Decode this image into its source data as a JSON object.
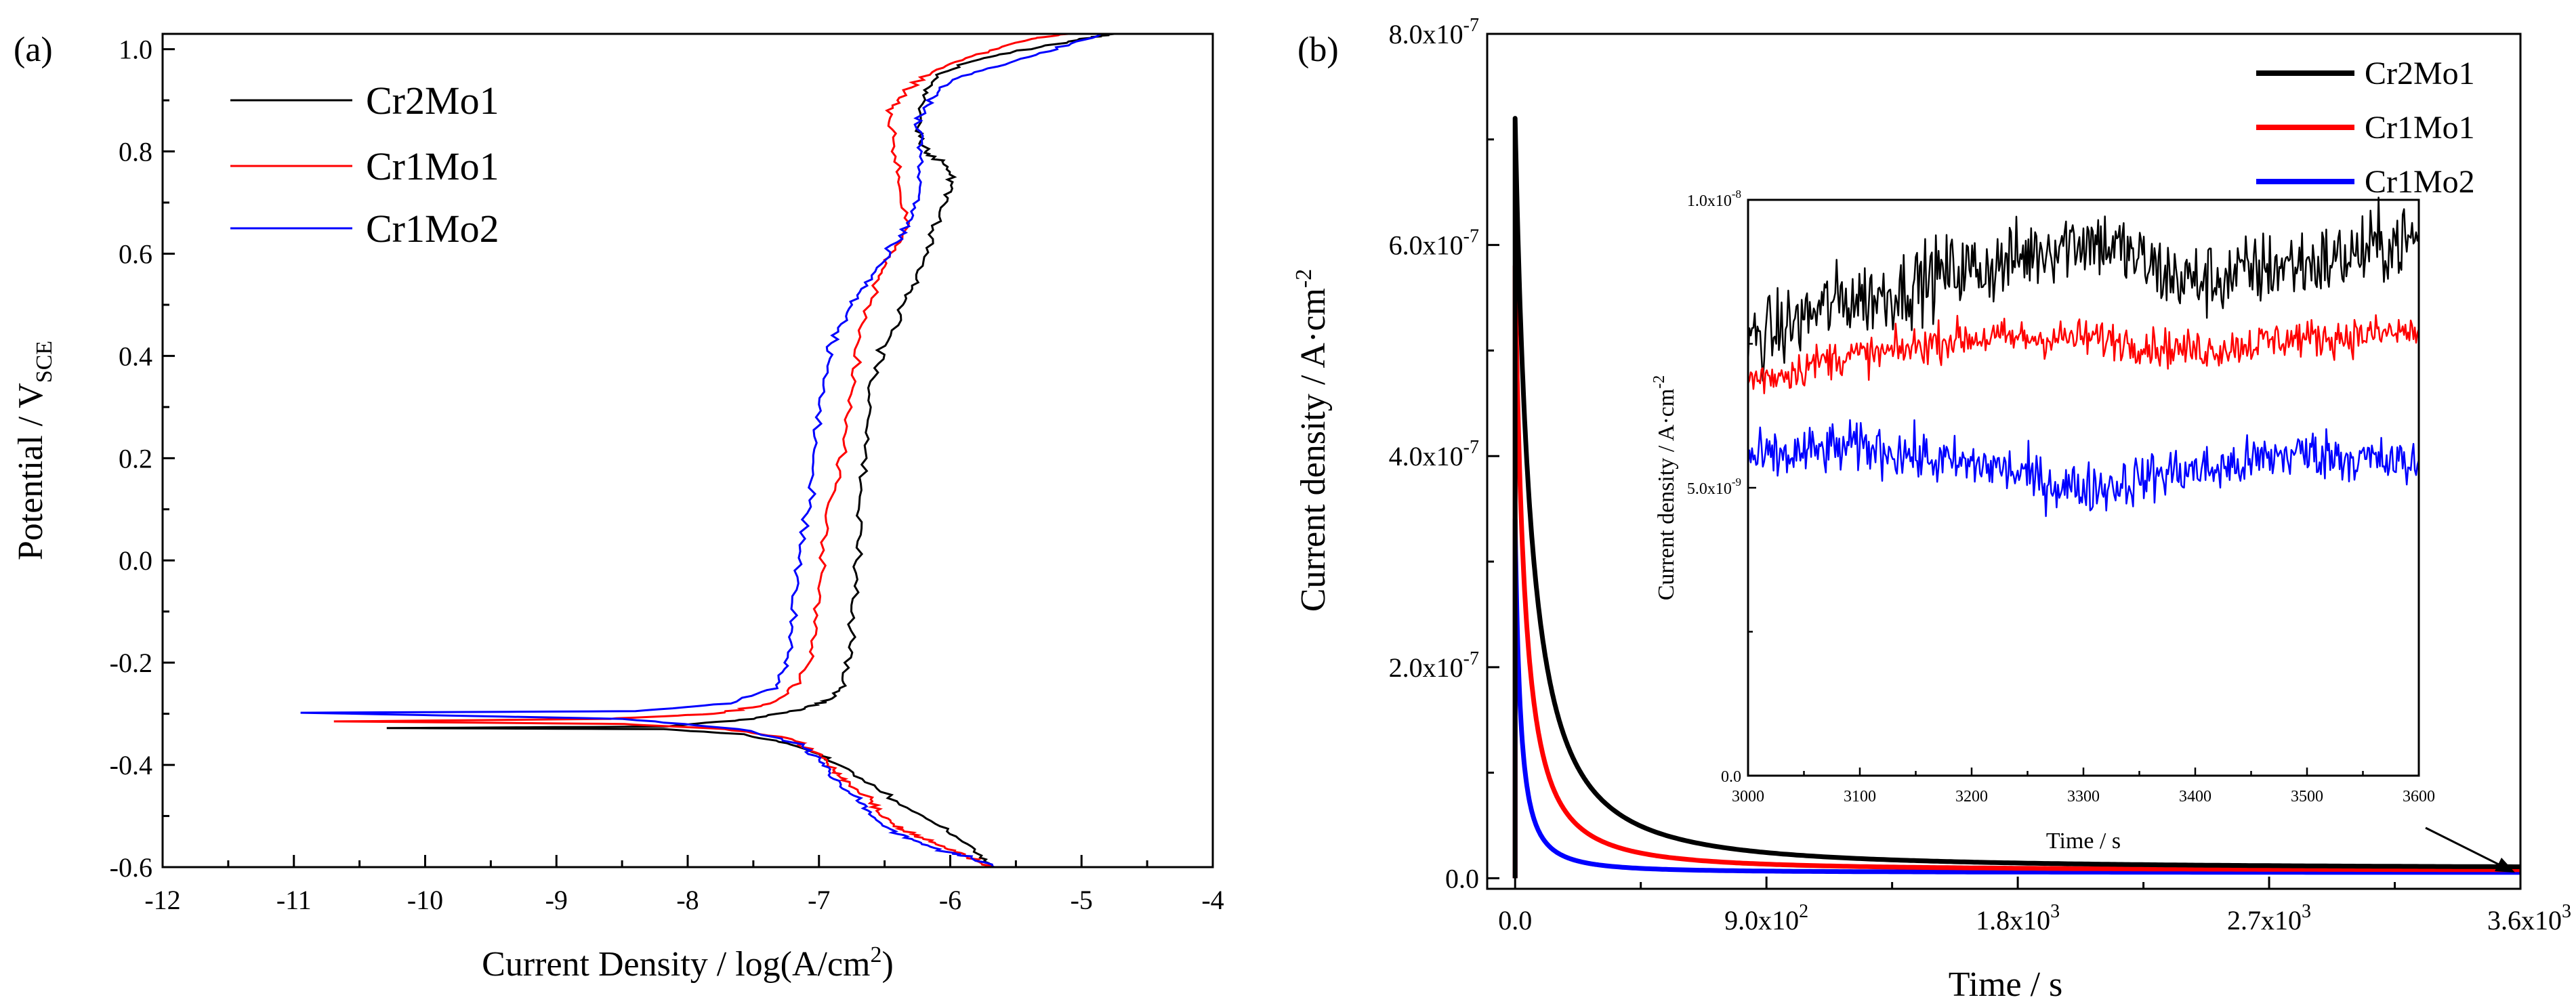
{
  "colors": {
    "Cr2Mo1": "#000000",
    "Cr1Mo1": "#ff0000",
    "Cr1Mo2": "#0000ff"
  },
  "chart_data": [
    {
      "id": "a",
      "type": "line",
      "panel_label": "(a)",
      "xlabel": "Current Density / log(A/cm",
      "xlabel_sup": "2",
      "xlabel_end": ")",
      "ylabel": "Potential / V",
      "ylabel_sub": "SCE",
      "xlim": [
        -12,
        -4
      ],
      "ylim": [
        -0.6,
        1.03
      ],
      "x_ticks": [
        "-12",
        "-11",
        "-10",
        "-9",
        "-8",
        "-7",
        "-6",
        "-5",
        "-4"
      ],
      "x_tick_values": [
        -12,
        -11,
        -10,
        -9,
        -8,
        -7,
        -6,
        -5,
        -4
      ],
      "y_ticks": [
        "-0.6",
        "-0.4",
        "-0.2",
        "0.0",
        "0.2",
        "0.4",
        "0.6",
        "0.8",
        "1.0"
      ],
      "y_tick_values": [
        -0.6,
        -0.4,
        -0.2,
        0.0,
        0.2,
        0.4,
        0.6,
        0.8,
        1.0
      ],
      "legend_position": "top-left",
      "series": [
        {
          "name": "Cr2Mo1",
          "points": [
            [
              -5.7,
              -0.6
            ],
            [
              -5.8,
              -0.57
            ],
            [
              -6.0,
              -0.53
            ],
            [
              -6.3,
              -0.49
            ],
            [
              -6.6,
              -0.44
            ],
            [
              -6.9,
              -0.39
            ],
            [
              -7.2,
              -0.36
            ],
            [
              -7.6,
              -0.34
            ],
            [
              -8.2,
              -0.33
            ],
            [
              -10.3,
              -0.328
            ],
            [
              -8.2,
              -0.325
            ],
            [
              -7.5,
              -0.31
            ],
            [
              -7.1,
              -0.29
            ],
            [
              -6.9,
              -0.27
            ],
            [
              -6.8,
              -0.23
            ],
            [
              -6.75,
              -0.15
            ],
            [
              -6.72,
              -0.05
            ],
            [
              -6.7,
              0.05
            ],
            [
              -6.68,
              0.15
            ],
            [
              -6.65,
              0.25
            ],
            [
              -6.6,
              0.35
            ],
            [
              -6.5,
              0.42
            ],
            [
              -6.35,
              0.5
            ],
            [
              -6.25,
              0.55
            ],
            [
              -6.15,
              0.62
            ],
            [
              -6.05,
              0.69
            ],
            [
              -5.98,
              0.74
            ],
            [
              -6.05,
              0.78
            ],
            [
              -6.2,
              0.8
            ],
            [
              -6.25,
              0.84
            ],
            [
              -6.2,
              0.91
            ],
            [
              -6.1,
              0.95
            ],
            [
              -5.8,
              0.98
            ],
            [
              -5.4,
              1.0
            ],
            [
              -5.0,
              1.02
            ],
            [
              -4.75,
              1.03
            ]
          ]
        },
        {
          "name": "Cr1Mo1",
          "points": [
            [
              -5.7,
              -0.6
            ],
            [
              -5.85,
              -0.58
            ],
            [
              -6.05,
              -0.56
            ],
            [
              -6.25,
              -0.54
            ],
            [
              -6.4,
              -0.52
            ],
            [
              -6.55,
              -0.49
            ],
            [
              -6.65,
              -0.46
            ],
            [
              -6.8,
              -0.43
            ],
            [
              -6.9,
              -0.41
            ],
            [
              -7.0,
              -0.38
            ],
            [
              -7.2,
              -0.35
            ],
            [
              -7.7,
              -0.33
            ],
            [
              -8.5,
              -0.32
            ],
            [
              -10.65,
              -0.315
            ],
            [
              -8.6,
              -0.31
            ],
            [
              -7.8,
              -0.3
            ],
            [
              -7.35,
              -0.28
            ],
            [
              -7.15,
              -0.24
            ],
            [
              -7.05,
              -0.17
            ],
            [
              -7.0,
              -0.07
            ],
            [
              -6.95,
              0.05
            ],
            [
              -6.88,
              0.15
            ],
            [
              -6.8,
              0.25
            ],
            [
              -6.75,
              0.35
            ],
            [
              -6.68,
              0.45
            ],
            [
              -6.55,
              0.55
            ],
            [
              -6.45,
              0.6
            ],
            [
              -6.32,
              0.66
            ],
            [
              -6.38,
              0.74
            ],
            [
              -6.45,
              0.82
            ],
            [
              -6.45,
              0.88
            ],
            [
              -6.35,
              0.92
            ],
            [
              -6.1,
              0.96
            ],
            [
              -5.8,
              0.99
            ],
            [
              -5.4,
              1.02
            ],
            [
              -5.1,
              1.03
            ]
          ]
        },
        {
          "name": "Cr1Mo2",
          "points": [
            [
              -5.65,
              -0.6
            ],
            [
              -5.85,
              -0.58
            ],
            [
              -6.05,
              -0.57
            ],
            [
              -6.25,
              -0.55
            ],
            [
              -6.45,
              -0.53
            ],
            [
              -6.6,
              -0.5
            ],
            [
              -6.7,
              -0.47
            ],
            [
              -6.8,
              -0.45
            ],
            [
              -6.9,
              -0.42
            ],
            [
              -7.0,
              -0.39
            ],
            [
              -7.15,
              -0.36
            ],
            [
              -7.6,
              -0.33
            ],
            [
              -8.5,
              -0.31
            ],
            [
              -10.95,
              -0.298
            ],
            [
              -8.4,
              -0.295
            ],
            [
              -7.7,
              -0.28
            ],
            [
              -7.35,
              -0.25
            ],
            [
              -7.25,
              -0.2
            ],
            [
              -7.2,
              -0.12
            ],
            [
              -7.15,
              -0.02
            ],
            [
              -7.1,
              0.08
            ],
            [
              -7.05,
              0.18
            ],
            [
              -7.0,
              0.28
            ],
            [
              -6.95,
              0.38
            ],
            [
              -6.88,
              0.44
            ],
            [
              -6.75,
              0.5
            ],
            [
              -6.6,
              0.55
            ],
            [
              -6.45,
              0.61
            ],
            [
              -6.32,
              0.66
            ],
            [
              -6.22,
              0.72
            ],
            [
              -6.22,
              0.8
            ],
            [
              -6.25,
              0.86
            ],
            [
              -6.15,
              0.9
            ],
            [
              -6.0,
              0.94
            ],
            [
              -5.6,
              0.97
            ],
            [
              -5.2,
              1.0
            ],
            [
              -4.85,
              1.03
            ]
          ]
        }
      ]
    },
    {
      "id": "b",
      "type": "line",
      "panel_label": "(b)",
      "xlabel": "Time / s",
      "ylabel": "Current density / A·cm",
      "ylabel_sup": "-2",
      "xlim": [
        -100,
        3600
      ],
      "ylim": [
        -1e-08,
        8e-07
      ],
      "x_ticks": [
        {
          "m": "0.0",
          "e": ""
        },
        {
          "m": "9.0x10",
          "e": "2"
        },
        {
          "m": "1.8x10",
          "e": "3"
        },
        {
          "m": "2.7x10",
          "e": "3"
        },
        {
          "m": "3.6x10",
          "e": "3"
        }
      ],
      "x_tick_values": [
        0,
        900,
        1800,
        2700,
        3600
      ],
      "y_ticks": [
        {
          "m": "0.0",
          "e": ""
        },
        {
          "m": "2.0x10",
          "e": "-7"
        },
        {
          "m": "4.0x10",
          "e": "-7"
        },
        {
          "m": "6.0x10",
          "e": "-7"
        },
        {
          "m": "8.0x10",
          "e": "-7"
        }
      ],
      "y_tick_values": [
        0,
        2e-07,
        4e-07,
        6e-07,
        8e-07
      ],
      "legend_position": "top-right",
      "series": [
        {
          "name": "Cr2Mo1",
          "peak": 7.2e-07,
          "floor": 9e-09,
          "tau": 90
        },
        {
          "name": "Cr1Mo1",
          "peak": 5.8e-07,
          "floor": 7.4e-09,
          "tau": 55
        },
        {
          "name": "Cr1Mo2",
          "peak": 3.4e-07,
          "floor": 5.4e-09,
          "tau": 30
        }
      ],
      "inset": {
        "xlabel": "Time / s",
        "ylabel": "Current density / A·cm",
        "ylabel_sup": "-2",
        "xlim": [
          3000,
          3600
        ],
        "ylim": [
          0,
          1e-08
        ],
        "x_ticks": [
          "3000",
          "3100",
          "3200",
          "3300",
          "3400",
          "3500",
          "3600"
        ],
        "x_tick_values": [
          3000,
          3100,
          3200,
          3300,
          3400,
          3500,
          3600
        ],
        "y_ticks": [
          {
            "m": "0.0",
            "e": ""
          },
          {
            "m": "5.0x10",
            "e": "-9"
          },
          {
            "m": "1.0x10",
            "e": "-8"
          }
        ],
        "y_tick_values": [
          0,
          5e-09,
          1e-08
        ],
        "series": [
          {
            "name": "Cr2Mo1",
            "trend": [
              [
                3000,
                7.6e-09
              ],
              [
                3100,
                8.3e-09
              ],
              [
                3200,
                8.8e-09
              ],
              [
                3300,
                9.3e-09
              ],
              [
                3400,
                8.6e-09
              ],
              [
                3500,
                8.9e-09
              ],
              [
                3600,
                9.3e-09
              ]
            ],
            "noise": 6e-10
          },
          {
            "name": "Cr1Mo1",
            "trend": [
              [
                3000,
                6.9e-09
              ],
              [
                3100,
                7.3e-09
              ],
              [
                3200,
                7.6e-09
              ],
              [
                3300,
                7.6e-09
              ],
              [
                3400,
                7.4e-09
              ],
              [
                3500,
                7.6e-09
              ],
              [
                3600,
                7.7e-09
              ]
            ],
            "noise": 3e-10
          },
          {
            "name": "Cr1Mo2",
            "trend": [
              [
                3000,
                5.5e-09
              ],
              [
                3100,
                5.7e-09
              ],
              [
                3200,
                5.4e-09
              ],
              [
                3300,
                5e-09
              ],
              [
                3400,
                5.3e-09
              ],
              [
                3500,
                5.6e-09
              ],
              [
                3600,
                5.4e-09
              ]
            ],
            "noise": 4e-10
          }
        ]
      }
    }
  ]
}
